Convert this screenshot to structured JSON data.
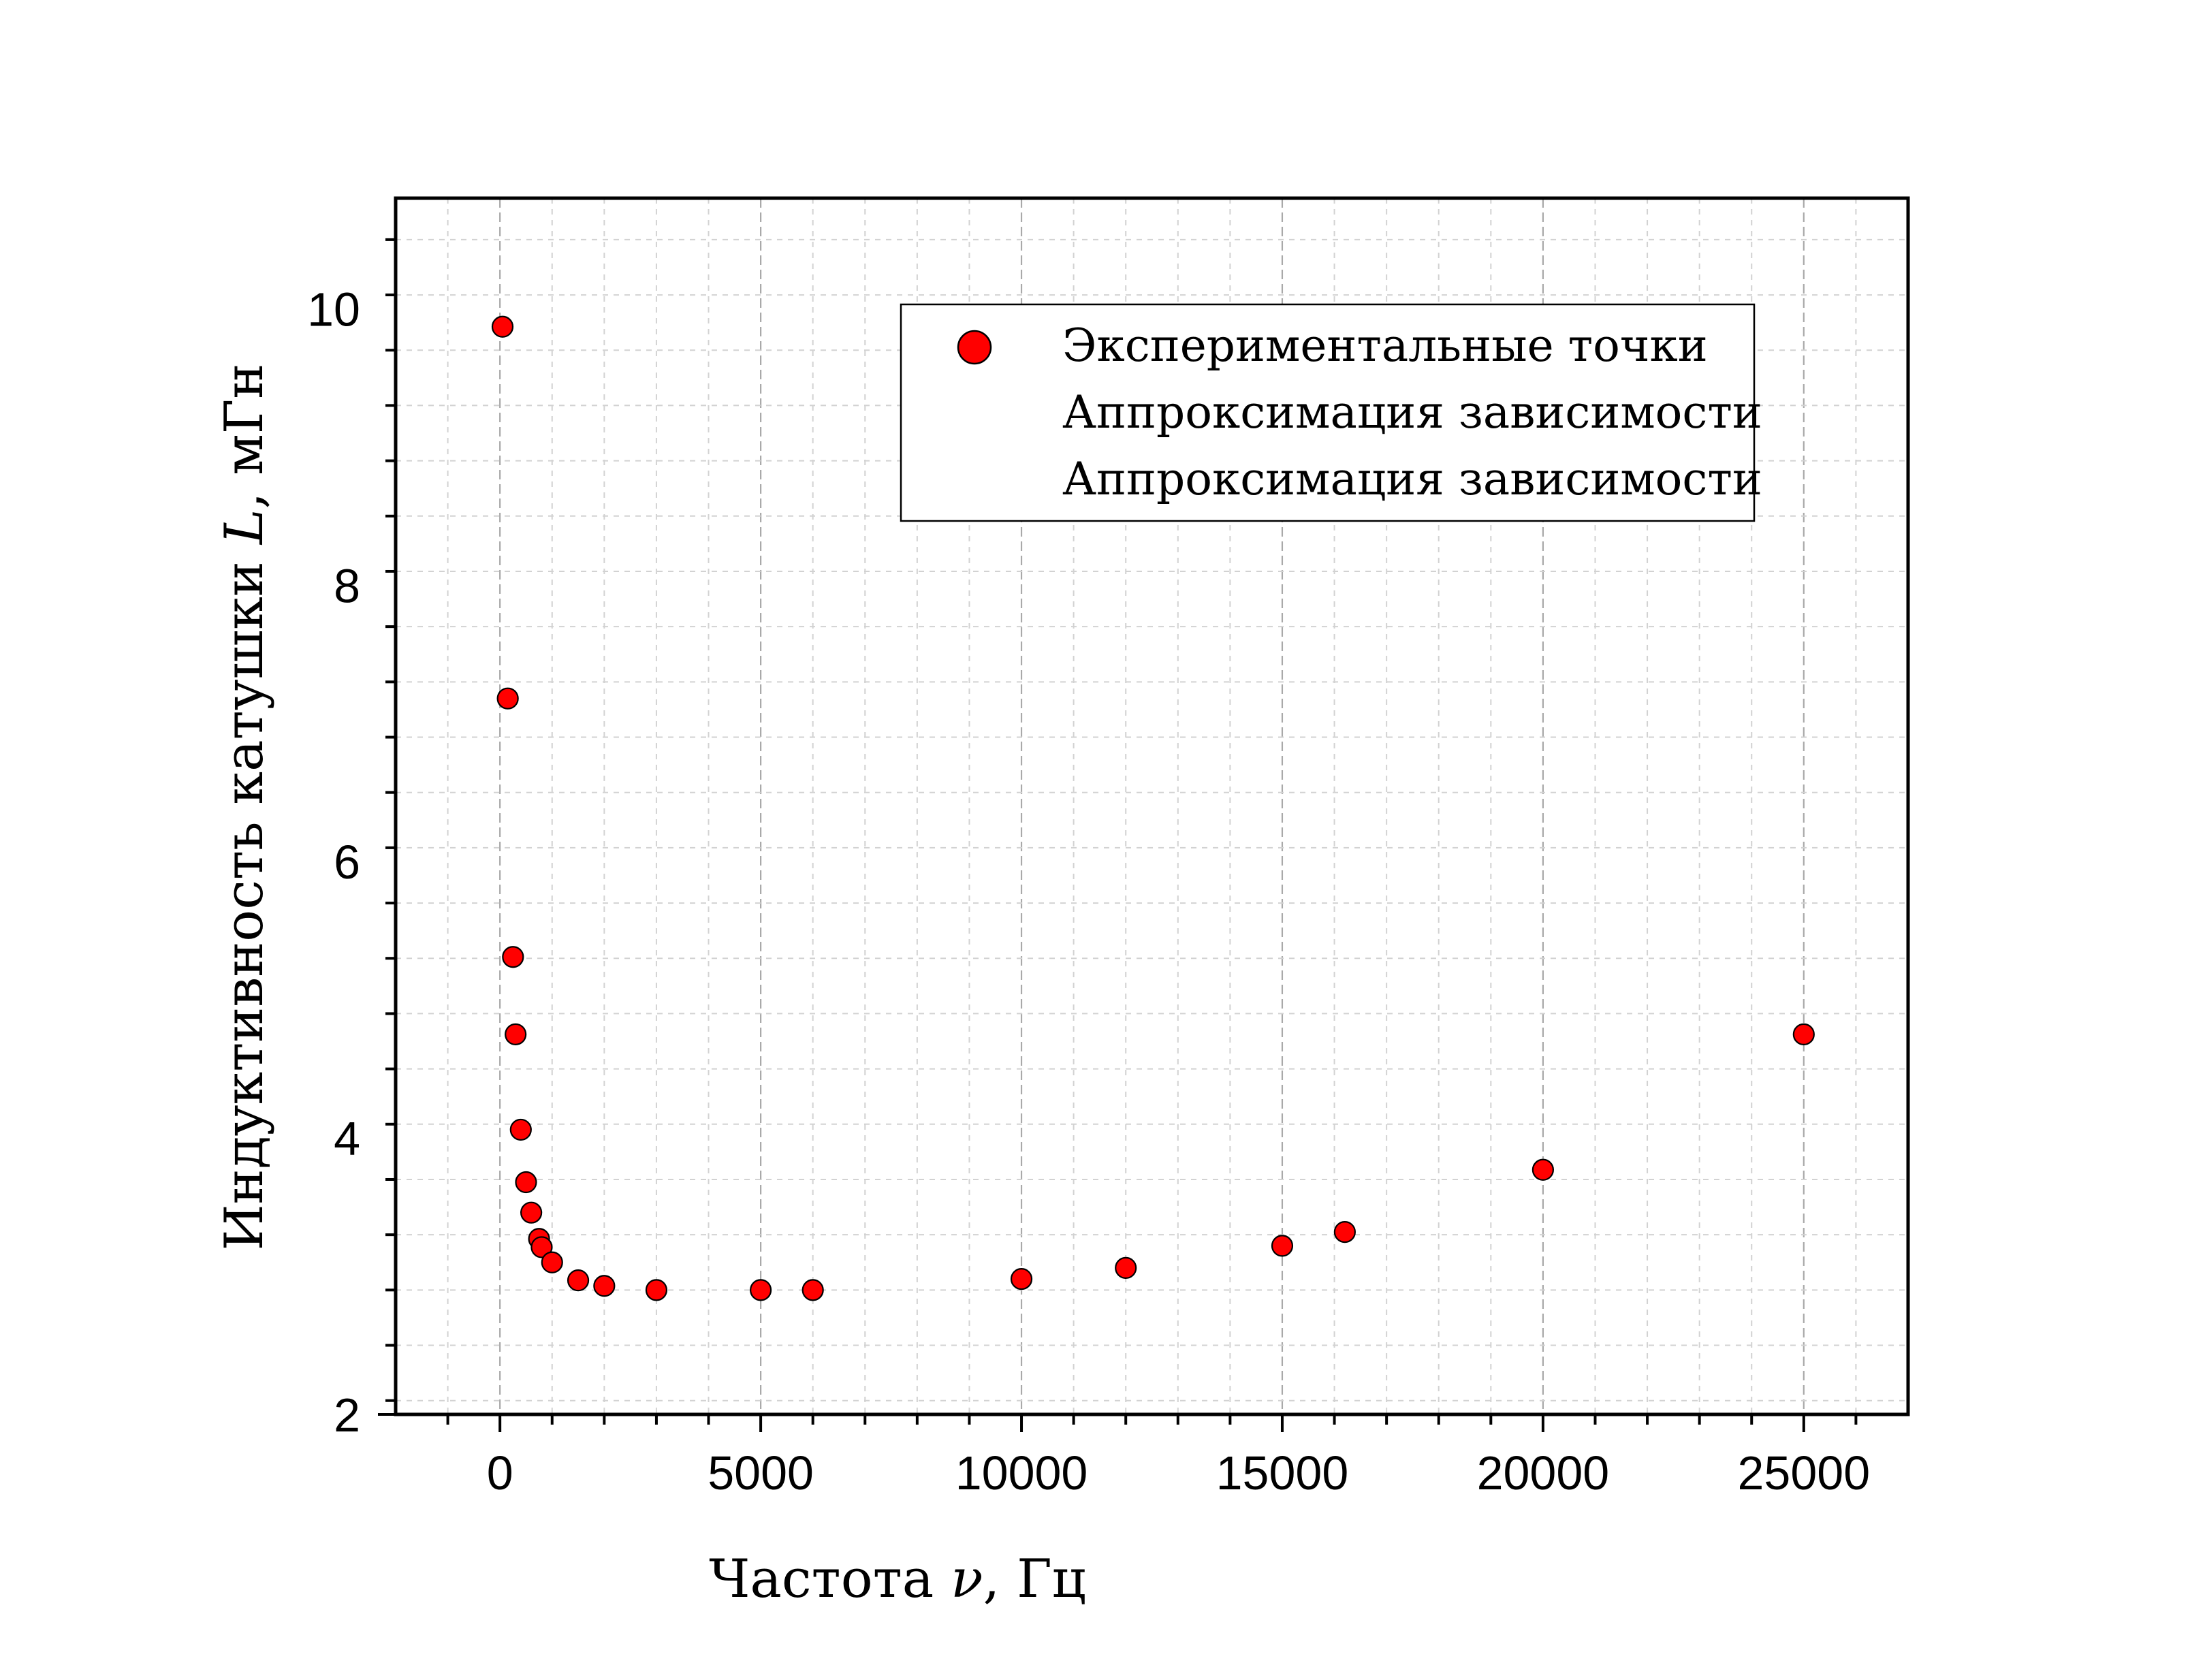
{
  "chart_data": {
    "type": "scatter",
    "xlabel": {
      "prefix": "Частота ",
      "symbol": "ν",
      "suffix": ", Гц"
    },
    "ylabel": {
      "prefix": "Индуктивность катушки ",
      "symbol": "L",
      "suffix": ", мГн"
    },
    "xlim": [
      -2000,
      27000
    ],
    "ylim": [
      2,
      10.8
    ],
    "x_ticks": [
      0,
      5000,
      10000,
      15000,
      20000,
      25000
    ],
    "x_tick_labels": [
      "0",
      "5000",
      "10000",
      "15000",
      "20000",
      "25000"
    ],
    "y_ticks": [
      2,
      4,
      6,
      8,
      10
    ],
    "y_tick_labels": [
      "2",
      "4",
      "6",
      "8",
      "10"
    ],
    "grid": true,
    "legend_position": "top-right",
    "legend": [
      "Экспериментальные точки",
      "Аппроксимация зависимости",
      "Аппроксимация зависимости"
    ],
    "marker_color": "#ff0000",
    "series": [
      {
        "name": "Экспериментальные точки",
        "points": [
          {
            "x": 50,
            "y": 9.87
          },
          {
            "x": 150,
            "y": 7.18
          },
          {
            "x": 250,
            "y": 5.31
          },
          {
            "x": 300,
            "y": 4.75
          },
          {
            "x": 400,
            "y": 4.06
          },
          {
            "x": 500,
            "y": 3.68
          },
          {
            "x": 600,
            "y": 3.46
          },
          {
            "x": 750,
            "y": 3.27
          },
          {
            "x": 800,
            "y": 3.21
          },
          {
            "x": 1000,
            "y": 3.1
          },
          {
            "x": 1500,
            "y": 2.97
          },
          {
            "x": 2000,
            "y": 2.93
          },
          {
            "x": 3000,
            "y": 2.9
          },
          {
            "x": 5000,
            "y": 2.9
          },
          {
            "x": 6000,
            "y": 2.9
          },
          {
            "x": 10000,
            "y": 2.98
          },
          {
            "x": 12000,
            "y": 3.06
          },
          {
            "x": 15000,
            "y": 3.22
          },
          {
            "x": 16200,
            "y": 3.32
          },
          {
            "x": 20000,
            "y": 3.77
          },
          {
            "x": 25000,
            "y": 4.75
          }
        ]
      }
    ]
  }
}
